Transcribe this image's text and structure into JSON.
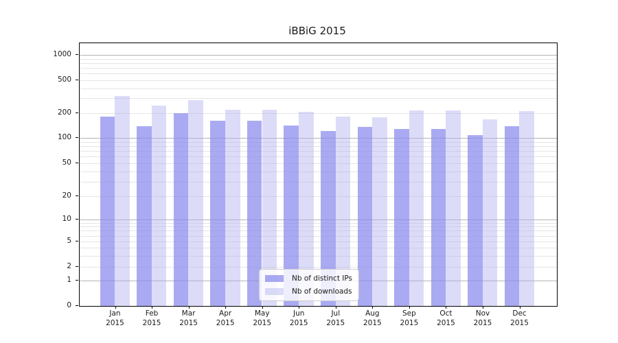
{
  "title": "iBBiG 2015",
  "chart_data": {
    "type": "bar",
    "title": "iBBiG 2015",
    "categories": [
      "Jan",
      "Feb",
      "Mar",
      "Apr",
      "May",
      "Jun",
      "Jul",
      "Aug",
      "Sep",
      "Oct",
      "Nov",
      "Dec"
    ],
    "category_year": "2015",
    "series": [
      {
        "name": "Nb of distinct IPs",
        "color": "#a9a9f1",
        "fill_rgba": "rgba(137,137,237,0.72)",
        "values": [
          180,
          138,
          200,
          160,
          160,
          140,
          122,
          136,
          128,
          128,
          108,
          138
        ]
      },
      {
        "name": "Nb of downloads",
        "color": "#dcdcf8",
        "fill_rgba": "rgba(178,178,240,0.45)",
        "values": [
          320,
          245,
          285,
          220,
          220,
          205,
          180,
          176,
          212,
          215,
          167,
          210
        ]
      }
    ],
    "xlabel": "",
    "ylabel": "",
    "yscale": "symlog",
    "y_ticks": [
      0,
      1,
      2,
      5,
      10,
      20,
      50,
      100,
      200,
      500,
      1000
    ],
    "ylim": [
      0,
      1400
    ],
    "grid": true,
    "grid_major_color": "#b3b3b3",
    "grid_minor_color": "#e4e4e4",
    "legend_position": "lower center"
  }
}
